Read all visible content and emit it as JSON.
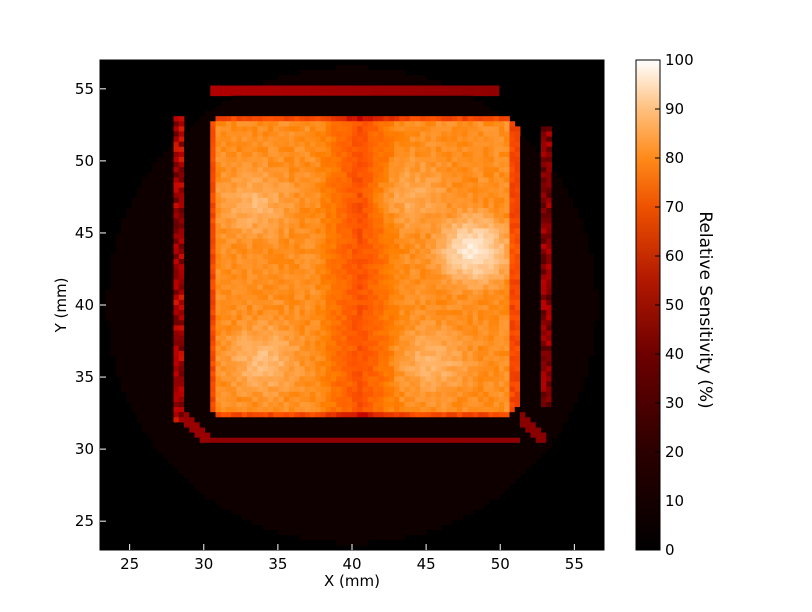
{
  "chart_data": {
    "type": "heatmap",
    "title": "",
    "xlabel": "X (mm)",
    "ylabel": "Y (mm)",
    "xlim": [
      23,
      57
    ],
    "ylim": [
      23,
      57
    ],
    "xticks": [
      25,
      30,
      35,
      40,
      45,
      50,
      55
    ],
    "yticks": [
      25,
      30,
      35,
      40,
      45,
      50,
      55
    ],
    "colormap": "gist_heat",
    "colorbar": {
      "label": "Relative Sensitivity (%)",
      "range": [
        0,
        100
      ],
      "ticks": [
        0,
        10,
        20,
        30,
        40,
        50,
        60,
        70,
        80,
        90,
        100
      ]
    },
    "grid": false,
    "regions": {
      "background_disk": {
        "center": [
          40,
          40
        ],
        "radius": 16.5,
        "value": 4
      },
      "inner_square": {
        "x": [
          30.3,
          51.2
        ],
        "y": [
          32.2,
          53.1
        ],
        "value": 78,
        "corner_radius": 1.0
      },
      "inner_square_hotspots": [
        {
          "x": 48.2,
          "y": 43.8,
          "value": 98
        },
        {
          "x": 33.5,
          "y": 47.0,
          "value": 86
        },
        {
          "x": 34.0,
          "y": 36.2,
          "value": 88
        },
        {
          "x": 45.5,
          "y": 36.0,
          "value": 86
        },
        {
          "x": 44.0,
          "y": 47.5,
          "value": 84
        }
      ],
      "inner_square_cold_band": {
        "x_center": 40.5,
        "width": 3.0,
        "value": 66
      },
      "inner_ring": {
        "x": [
          29.5,
          52.0
        ],
        "y": [
          31.5,
          53.8
        ],
        "width": 0.5,
        "value": 3
      },
      "outer_frame_top_bar": {
        "x": [
          30.3,
          49.8
        ],
        "y": 54.8,
        "value": 42
      },
      "outer_frame_bottom_bar": {
        "x": [
          30.3,
          51.5
        ],
        "y": 30.6,
        "value": 38
      },
      "outer_frame_left_strip": {
        "x": 28.2,
        "y": [
          32.0,
          53.0
        ],
        "value": 40
      },
      "outer_frame_right_strip": {
        "x": 53.0,
        "y": [
          33.0,
          52.5
        ],
        "value": 36
      }
    }
  }
}
